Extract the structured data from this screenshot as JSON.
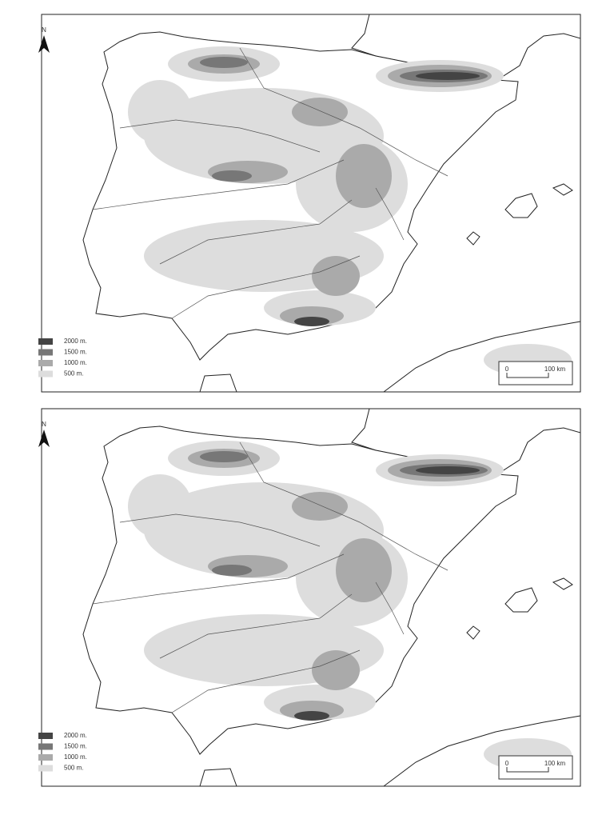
{
  "maps": [
    {
      "north": "N",
      "legend": [
        {
          "label": "2000 m.",
          "color": "#444"
        },
        {
          "label": "1500 m.",
          "color": "#777"
        },
        {
          "label": "1000 m.",
          "color": "#aaa"
        },
        {
          "label": "500 m.",
          "color": "#ddd"
        }
      ],
      "scale": {
        "start": "0",
        "end": "100 km"
      }
    },
    {
      "north": "N",
      "legend": [
        {
          "label": "2000 m.",
          "color": "#444"
        },
        {
          "label": "1500 m.",
          "color": "#777"
        },
        {
          "label": "1000 m.",
          "color": "#aaa"
        },
        {
          "label": "500 m.",
          "color": "#ddd"
        }
      ],
      "scale": {
        "start": "0",
        "end": "100 km"
      }
    }
  ]
}
